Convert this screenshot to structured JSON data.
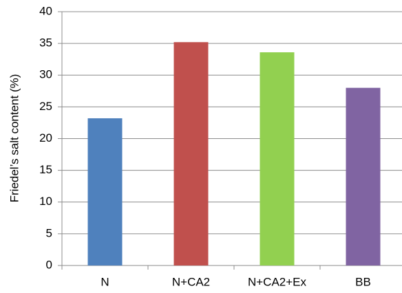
{
  "chart_data": {
    "type": "bar",
    "y_label": "Friedel’s salt content (%)",
    "categories": [
      "N",
      "N+CA2",
      "N+CA2+Ex",
      "BB"
    ],
    "values": [
      23.2,
      35.2,
      33.6,
      28.0
    ],
    "colors": [
      "#4f81bd",
      "#c0504d",
      "#92d050",
      "#8064a2"
    ],
    "ylim": [
      0,
      40
    ],
    "yticks": [
      0,
      5,
      10,
      15,
      20,
      25,
      30,
      35,
      40
    ],
    "grid": true
  }
}
